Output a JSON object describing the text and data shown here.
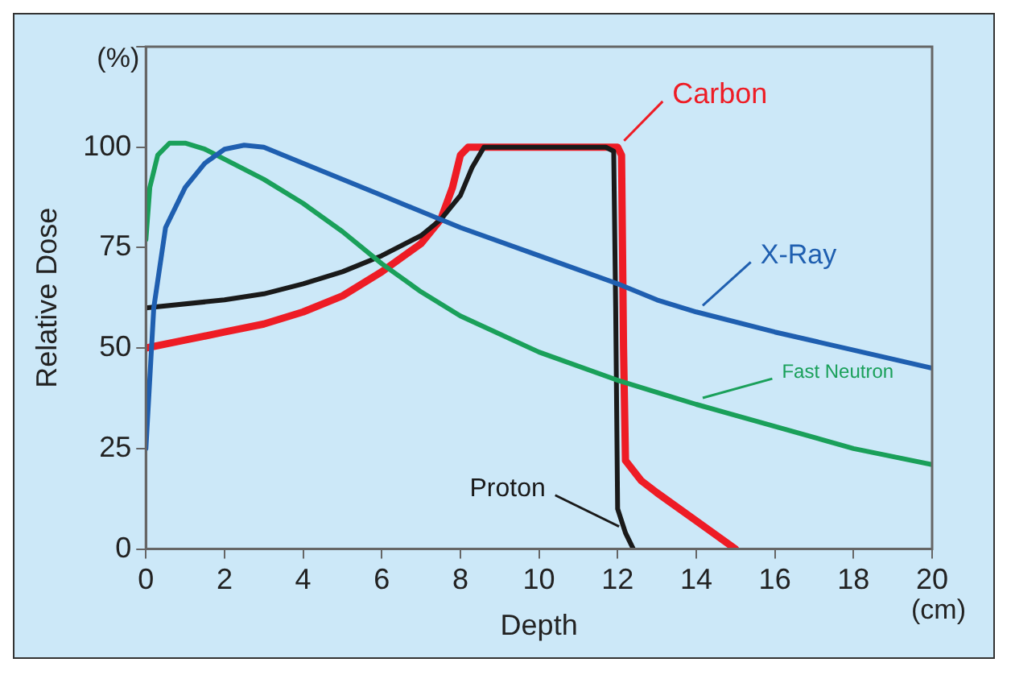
{
  "chart_data": {
    "type": "line",
    "xlabel": "Depth",
    "ylabel": "Relative Dose",
    "annotations": [
      "(%)",
      "(cm)"
    ],
    "xlim": [
      0,
      20
    ],
    "xticks": [
      0,
      2,
      4,
      6,
      8,
      10,
      12,
      14,
      16,
      18,
      20
    ],
    "ylim": [
      0,
      125
    ],
    "yticks": [
      0,
      25,
      50,
      75,
      100,
      {
        "value": 125,
        "label": null
      }
    ],
    "grid": false,
    "legend": false,
    "marker": "none",
    "line_style": "solid",
    "series": [
      {
        "name": "X-Ray",
        "color": "#1f5fb0",
        "x": [
          0,
          0.2,
          0.5,
          1,
          1.5,
          2,
          2.5,
          3,
          4,
          6,
          8,
          10,
          12,
          13,
          14,
          16,
          18,
          20
        ],
        "values": [
          25,
          60,
          80,
          90,
          96,
          99.5,
          100.5,
          100,
          96,
          88,
          80,
          73,
          66,
          62,
          59,
          54,
          49.5,
          45
        ]
      },
      {
        "name": "Fast Neutron",
        "color": "#1aa05a",
        "x": [
          0,
          0.1,
          0.3,
          0.6,
          1,
          1.5,
          2,
          3,
          4,
          5,
          6,
          7,
          8,
          10,
          12,
          13,
          14,
          16,
          18,
          20
        ],
        "values": [
          77,
          90,
          98,
          101,
          101,
          99.5,
          97,
          92,
          86,
          79,
          71,
          64,
          58,
          49,
          42,
          39,
          36,
          30.5,
          25,
          21
        ]
      },
      {
        "name": "Proton",
        "color": "#1a1a1a",
        "x": [
          0,
          2,
          3,
          4,
          5,
          6,
          7,
          7.5,
          8,
          8.3,
          8.6,
          11.7,
          11.9,
          11.95,
          12,
          12.2,
          12.4
        ],
        "values": [
          60,
          62,
          63.5,
          66,
          69,
          73,
          78,
          82,
          88,
          95,
          100,
          100,
          99,
          60,
          10,
          4,
          0
        ]
      },
      {
        "name": "Carbon",
        "color": "#ee1c25",
        "x": [
          0,
          1,
          2,
          3,
          4,
          5,
          6,
          7,
          7.5,
          7.8,
          8,
          8.2,
          12,
          12.1,
          12.15,
          12.2,
          12.6,
          13,
          14,
          15
        ],
        "values": [
          50,
          52,
          54,
          56,
          59,
          63,
          69,
          76,
          82,
          90,
          98,
          100,
          100,
          98,
          50,
          22,
          17,
          14,
          7,
          0
        ]
      }
    ]
  }
}
